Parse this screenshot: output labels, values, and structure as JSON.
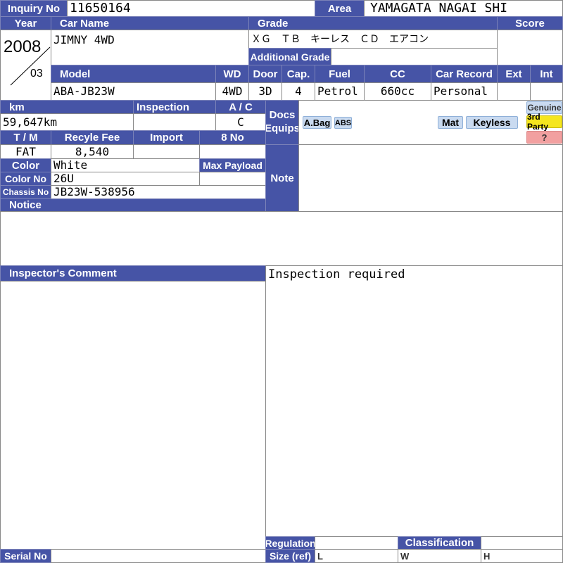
{
  "header": {
    "inquiry_label": "Inquiry No",
    "inquiry_no": "11650164",
    "area_label": "Area",
    "area": "YAMAGATA NAGAI SHI"
  },
  "labels": {
    "year": "Year",
    "car_name": "Car Name",
    "grade": "Grade",
    "score": "Score",
    "additional_grade": "Additional Grade",
    "model": "Model",
    "wd": "WD",
    "door": "Door",
    "cap": "Cap.",
    "fuel": "Fuel",
    "cc": "CC",
    "car_record": "Car Record",
    "ext": "Ext",
    "int": "Int",
    "km": "km",
    "inspection": "Inspection",
    "ac": "A / C",
    "docs": "Docs",
    "equips": "Equips",
    "tm": "T / M",
    "recycle_fee": "Recyle Fee",
    "import": "Import",
    "eight_no": "8 No",
    "color": "Color",
    "max_payload": "Max Payload",
    "color_no": "Color No",
    "chassis_no": "Chassis No",
    "notice": "Notice",
    "note": "Note",
    "inspector_comment": "Inspector's Comment",
    "regulation": "Regulation",
    "classification": "Classification",
    "serial_no": "Serial No",
    "size_ref": "Size (ref)"
  },
  "vehicle": {
    "year": "2008",
    "month": "03",
    "car_name": "JIMNY 4WD",
    "grade": "ＸＧ　ＴＢ　キーレス　ＣＤ　エアコン",
    "model": "ABA-JB23W",
    "wd": "4WD",
    "door": "3D",
    "cap": "4",
    "fuel": "Petrol",
    "cc": "660cc",
    "car_record": "Personal",
    "km": "59,647km",
    "ac": "C",
    "tm": "FAT",
    "recycle_fee": "8,540",
    "color": "White",
    "color_no": "26U",
    "chassis_no": "JB23W-538956"
  },
  "equips": [
    "A.Bag",
    "ABS",
    "Mat",
    "Keyless"
  ],
  "source": {
    "genuine": "Genuine",
    "third_party": "3rd Party",
    "unknown": "?"
  },
  "comment": "Inspection required",
  "size": {
    "l": "L",
    "w": "W",
    "h": "H"
  },
  "colors": {
    "label_bg": "#4654a6",
    "badge": "#c9daf0",
    "third_party": "#f5e61e",
    "unknown": "#f2a0a0"
  }
}
